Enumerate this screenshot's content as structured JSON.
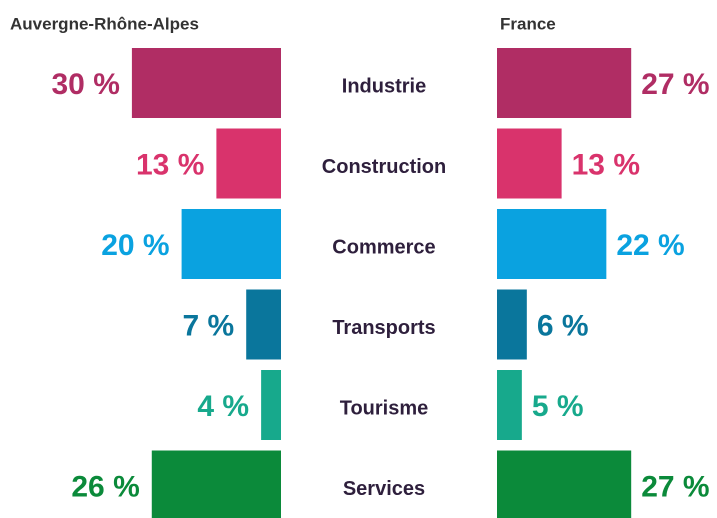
{
  "chart_data": {
    "type": "butterfly-bar",
    "categories": [
      "Industrie",
      "Construction",
      "Commerce",
      "Transports",
      "Tourisme",
      "Services"
    ],
    "colors": [
      "#b02d64",
      "#d9336c",
      "#0aa2e0",
      "#0a769c",
      "#17a98c",
      "#0b8a3a"
    ],
    "series": [
      {
        "name": "Auvergne-Rhône-Alpes",
        "values": [
          30,
          13,
          20,
          7,
          4,
          26
        ],
        "value_labels": [
          "30 %",
          "13 %",
          "20 %",
          "7 %",
          "4 %",
          "26 %"
        ]
      },
      {
        "name": "France",
        "values": [
          27,
          13,
          22,
          6,
          5,
          27
        ],
        "value_labels": [
          "27 %",
          "13 %",
          "22 %",
          "6 %",
          "5 %",
          "27 %"
        ]
      }
    ]
  }
}
